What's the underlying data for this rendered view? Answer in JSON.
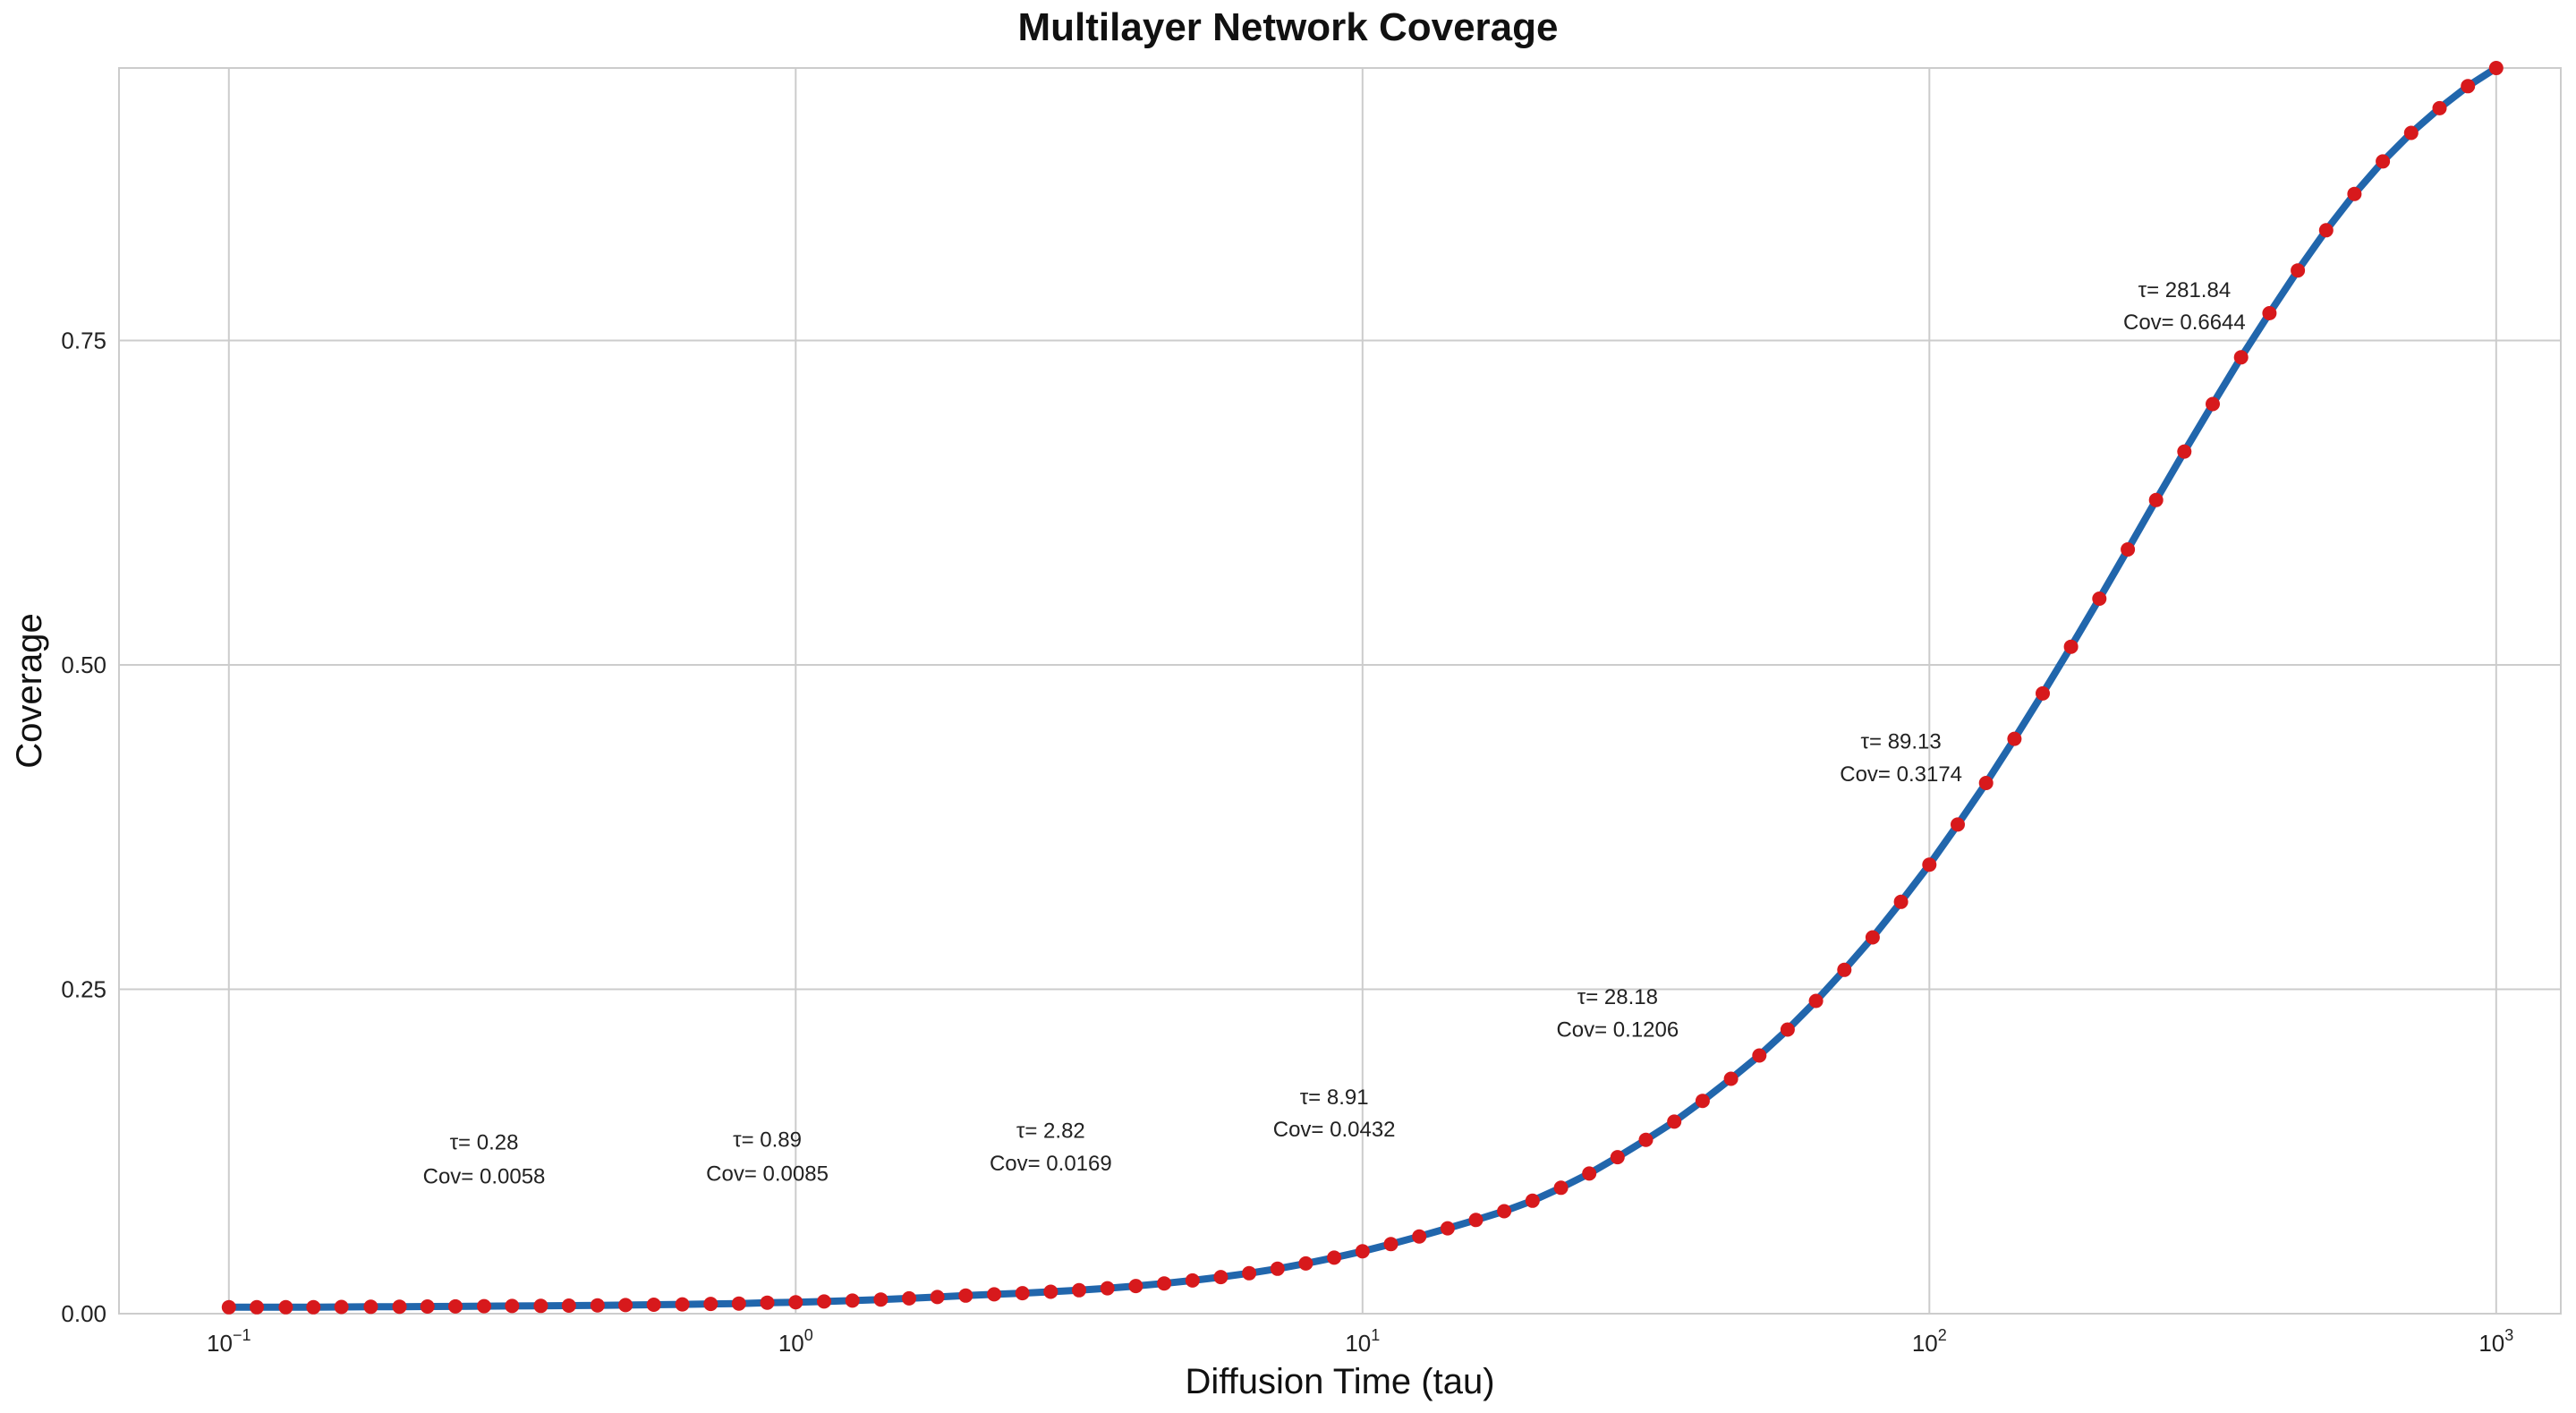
{
  "chart_data": {
    "type": "line",
    "title": "Multilayer Network Coverage",
    "xlabel": "Diffusion Time (tau)",
    "ylabel": "Coverage",
    "x_scale": "log",
    "xlim": [
      0.064,
      1300
    ],
    "ylim": [
      0,
      0.96
    ],
    "x_ticks": [
      {
        "value": 0.1,
        "base": "10",
        "exp": "−1"
      },
      {
        "value": 1,
        "base": "10",
        "exp": "0"
      },
      {
        "value": 10,
        "base": "10",
        "exp": "1"
      },
      {
        "value": 100,
        "base": "10",
        "exp": "2"
      },
      {
        "value": 1000,
        "base": "10",
        "exp": "3"
      }
    ],
    "y_ticks": [
      {
        "value": 0,
        "label": "0.00"
      },
      {
        "value": 0.25,
        "label": "0.25"
      },
      {
        "value": 0.5,
        "label": "0.50"
      },
      {
        "value": 0.75,
        "label": "0.75"
      }
    ],
    "grid": true,
    "line_color": "#2166ac",
    "marker_color": "#d7191c",
    "series": [
      {
        "x": [
          0.1,
          0.112,
          0.126,
          0.141,
          0.158,
          0.178,
          0.2,
          0.224,
          0.251,
          0.282,
          0.316,
          0.355,
          0.398,
          0.447,
          0.501,
          0.562,
          0.631,
          0.708,
          0.794,
          0.891,
          1.0,
          1.122,
          1.259,
          1.413,
          1.585,
          1.778,
          1.995,
          2.239,
          2.512,
          2.818,
          3.162,
          3.548,
          3.981,
          4.467,
          5.012,
          5.623,
          6.31,
          7.079,
          7.943,
          8.913,
          10.0,
          11.22,
          12.59,
          14.13,
          15.85,
          17.78,
          19.95,
          22.39,
          25.12,
          28.18,
          31.62,
          35.48,
          39.81,
          44.67,
          50.12,
          56.23,
          63.1,
          70.79,
          79.43,
          89.13,
          100.0,
          112.2,
          125.9,
          141.3,
          158.5,
          177.8,
          199.5,
          223.9,
          251.2,
          281.8,
          316.2,
          354.8,
          398.1,
          446.7,
          501.2,
          562.3,
          631.0,
          707.9,
          794.3,
          891.3,
          1000.0
        ],
        "y": [
          0.005,
          0.005,
          0.005,
          0.005,
          0.0052,
          0.0053,
          0.0054,
          0.0055,
          0.0056,
          0.0058,
          0.0059,
          0.006,
          0.0062,
          0.0064,
          0.0066,
          0.0069,
          0.0072,
          0.0075,
          0.0078,
          0.0085,
          0.0088,
          0.0094,
          0.0101,
          0.0109,
          0.0118,
          0.0128,
          0.0139,
          0.0149,
          0.0158,
          0.0169,
          0.0181,
          0.0196,
          0.0213,
          0.0233,
          0.0256,
          0.0282,
          0.0312,
          0.0346,
          0.0387,
          0.0432,
          0.0481,
          0.0536,
          0.0595,
          0.0658,
          0.0722,
          0.079,
          0.087,
          0.097,
          0.108,
          0.1206,
          0.134,
          0.148,
          0.164,
          0.181,
          0.199,
          0.219,
          0.241,
          0.265,
          0.29,
          0.3174,
          0.346,
          0.377,
          0.409,
          0.443,
          0.478,
          0.514,
          0.551,
          0.589,
          0.627,
          0.6644,
          0.701,
          0.737,
          0.771,
          0.804,
          0.835,
          0.863,
          0.888,
          0.91,
          0.929,
          0.946,
          0.96
        ]
      }
    ],
    "annotations": [
      {
        "x": 0.282,
        "y": 0.0058,
        "tau_text": "τ= 0.28",
        "cov_text": "Cov= 0.0058",
        "tau_y": 0.132,
        "cov_y": 0.106
      },
      {
        "x": 0.891,
        "y": 0.0085,
        "tau_text": "τ= 0.89",
        "cov_text": "Cov= 0.0085",
        "tau_y": 0.134,
        "cov_y": 0.108
      },
      {
        "x": 2.818,
        "y": 0.0169,
        "tau_text": "τ= 2.82",
        "cov_text": "Cov= 0.0169",
        "tau_y": 0.141,
        "cov_y": 0.116
      },
      {
        "x": 8.913,
        "y": 0.0432,
        "tau_text": "τ= 8.91",
        "cov_text": "Cov= 0.0432",
        "tau_y": 0.167,
        "cov_y": 0.142
      },
      {
        "x": 28.18,
        "y": 0.1206,
        "tau_text": "τ= 28.18",
        "cov_text": "Cov= 0.1206",
        "tau_y": 0.244,
        "cov_y": 0.219
      },
      {
        "x": 89.13,
        "y": 0.3174,
        "tau_text": "τ= 89.13",
        "cov_text": "Cov= 0.3174",
        "tau_y": 0.441,
        "cov_y": 0.416
      },
      {
        "x": 281.84,
        "y": 0.6644,
        "tau_text": "τ= 281.84",
        "cov_text": "Cov= 0.6644",
        "tau_y": 0.789,
        "cov_y": 0.764
      }
    ]
  }
}
